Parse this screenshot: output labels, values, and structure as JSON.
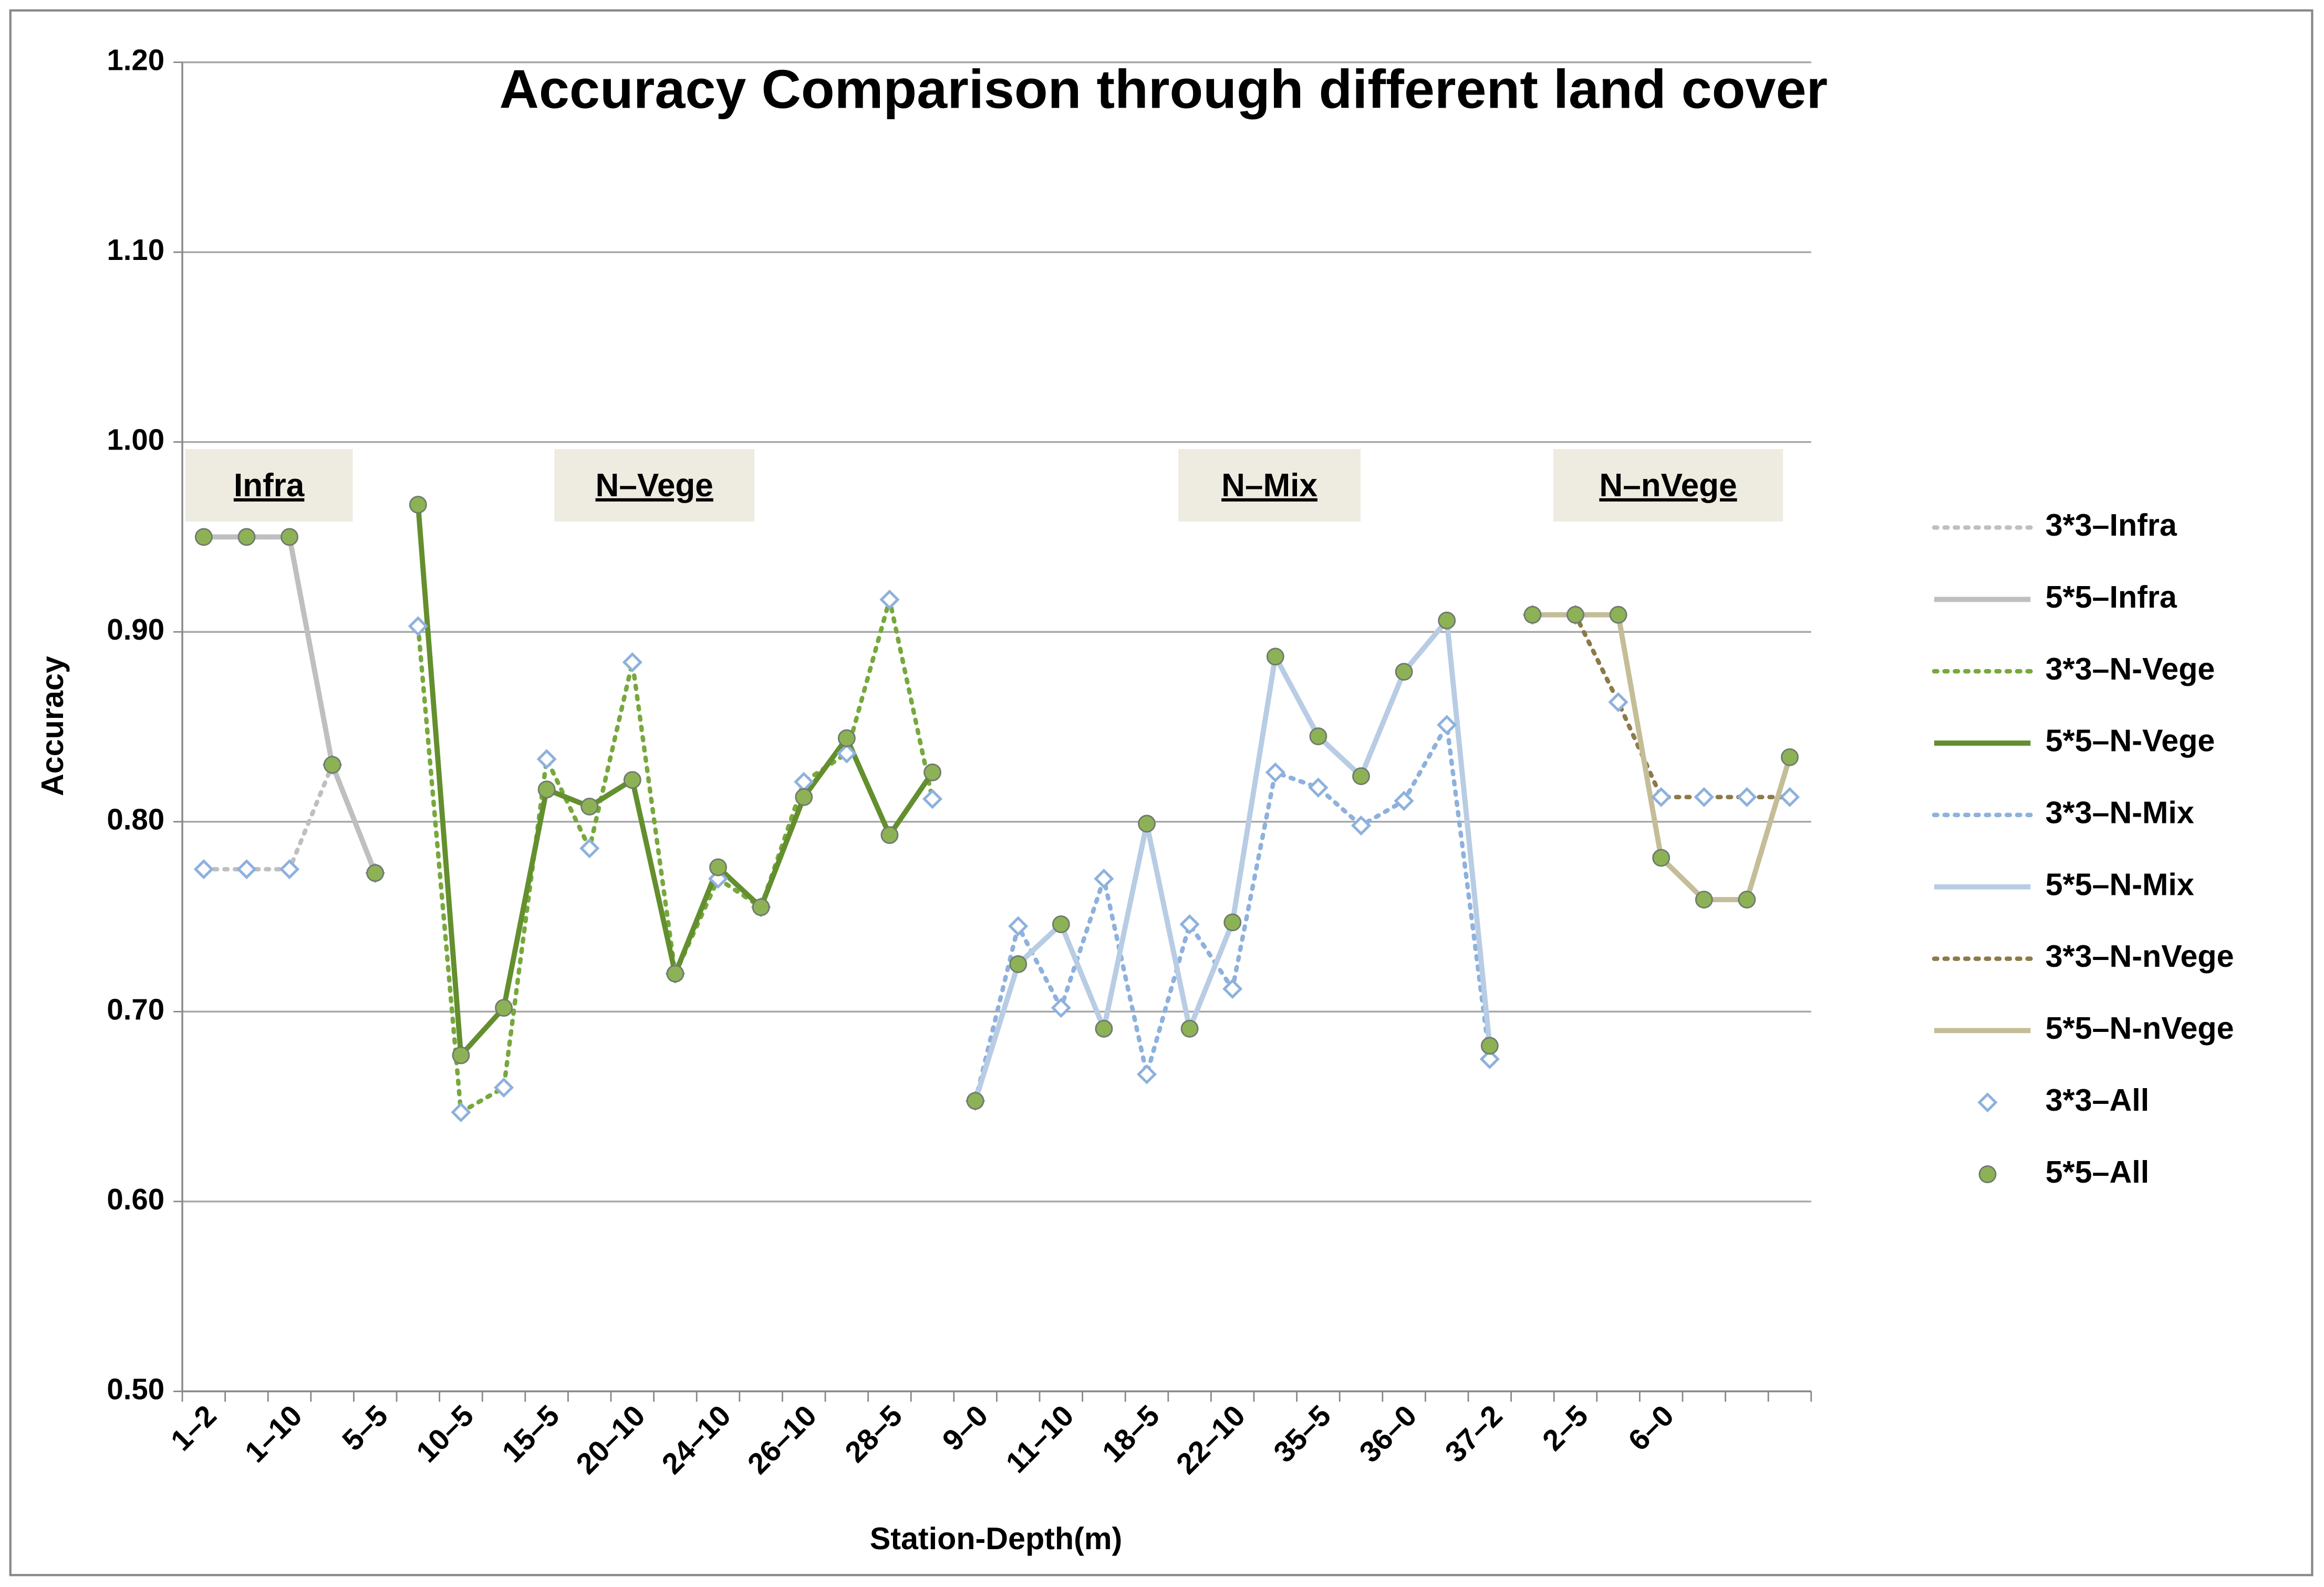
{
  "chart_data": {
    "type": "line",
    "title": "Accuracy Comparison through different land cover",
    "x_label": "Station-Depth(m)",
    "y_label": "Accuracy",
    "categories": [
      "1–2",
      null,
      "1–10",
      null,
      "5–5",
      null,
      "10–5",
      null,
      "15–5",
      null,
      "20–10",
      null,
      "24–10",
      null,
      "26–10",
      null,
      "28–5",
      null,
      "9–0",
      null,
      "11–10",
      null,
      "18–5",
      null,
      "22–10",
      null,
      "35–5",
      null,
      "36–0",
      null,
      "37–2",
      null,
      "2–5",
      null,
      "6–0",
      null,
      null,
      null
    ],
    "ylim": [
      0.5,
      1.2
    ],
    "yticks": [
      {
        "value": 0.5,
        "label": "0.50"
      },
      {
        "value": 0.6,
        "label": "0.60"
      },
      {
        "value": 0.7,
        "label": "0.70"
      },
      {
        "value": 0.8,
        "label": "0.80"
      },
      {
        "value": 0.9,
        "label": "0.90"
      },
      {
        "value": 1.0,
        "label": "1.00"
      },
      {
        "value": 1.1,
        "label": "1.10"
      },
      {
        "value": 1.2,
        "label": "1.20"
      }
    ],
    "grid": true,
    "legend": "right",
    "annotations": [
      "Infra",
      "N–Vege",
      "N–Mix",
      "N–nVege"
    ],
    "series": [
      {
        "name": "3*3–Infra",
        "color": "#bfbfbf",
        "style": "dotted",
        "marker": "diamond",
        "values": [
          0.775,
          0.775,
          0.775,
          0.83,
          0.773,
          null,
          null,
          null,
          null,
          null,
          null,
          null,
          null,
          null,
          null,
          null,
          null,
          null,
          null,
          null,
          null,
          null,
          null,
          null,
          null,
          null,
          null,
          null,
          null,
          null,
          null,
          null,
          null,
          null,
          null,
          null,
          null,
          null
        ]
      },
      {
        "name": "5*5–Infra",
        "color": "#bfbfbf",
        "style": "solid",
        "marker": "circle",
        "values": [
          0.95,
          0.95,
          0.95,
          0.83,
          0.773,
          null,
          null,
          null,
          null,
          null,
          null,
          null,
          null,
          null,
          null,
          null,
          null,
          null,
          null,
          null,
          null,
          null,
          null,
          null,
          null,
          null,
          null,
          null,
          null,
          null,
          null,
          null,
          null,
          null,
          null,
          null,
          null,
          null
        ]
      },
      {
        "name": "3*3–N-Vege",
        "color": "#77a83c",
        "style": "dotted",
        "marker": "diamond",
        "values": [
          null,
          null,
          null,
          null,
          null,
          0.903,
          0.647,
          0.66,
          0.833,
          0.786,
          0.884,
          0.72,
          0.77,
          0.755,
          0.821,
          0.836,
          0.917,
          0.812,
          null,
          null,
          null,
          null,
          null,
          null,
          null,
          null,
          null,
          null,
          null,
          null,
          null,
          null,
          null,
          null,
          null,
          null,
          null,
          null
        ]
      },
      {
        "name": "5*5–N-Vege",
        "color": "#638f2e",
        "style": "solid",
        "marker": "circle",
        "values": [
          null,
          null,
          null,
          null,
          null,
          0.967,
          0.677,
          0.702,
          0.817,
          0.808,
          0.822,
          0.72,
          0.776,
          0.755,
          0.813,
          0.844,
          0.793,
          0.826,
          null,
          null,
          null,
          null,
          null,
          null,
          null,
          null,
          null,
          null,
          null,
          null,
          null,
          null,
          null,
          null,
          null,
          null,
          null,
          null
        ]
      },
      {
        "name": "3*3–N-Mix",
        "color": "#8eb1dd",
        "style": "dotted",
        "marker": "diamond",
        "values": [
          null,
          null,
          null,
          null,
          null,
          null,
          null,
          null,
          null,
          null,
          null,
          null,
          null,
          null,
          null,
          null,
          null,
          null,
          0.653,
          0.745,
          0.702,
          0.77,
          0.667,
          0.746,
          0.712,
          0.826,
          0.818,
          0.798,
          0.811,
          0.851,
          0.675,
          null,
          null,
          null,
          null,
          null,
          null,
          null
        ]
      },
      {
        "name": "5*5–N-Mix",
        "color": "#b8cce4",
        "style": "solid",
        "marker": "circle",
        "values": [
          null,
          null,
          null,
          null,
          null,
          null,
          null,
          null,
          null,
          null,
          null,
          null,
          null,
          null,
          null,
          null,
          null,
          null,
          0.653,
          0.725,
          0.746,
          0.691,
          0.799,
          0.691,
          0.747,
          0.887,
          0.845,
          0.824,
          0.879,
          0.906,
          0.682,
          null,
          null,
          null,
          null,
          null,
          null,
          null
        ]
      },
      {
        "name": "3*3–N-nVege",
        "color": "#8c7a4a",
        "style": "dotted",
        "marker": "diamond",
        "values": [
          null,
          null,
          null,
          null,
          null,
          null,
          null,
          null,
          null,
          null,
          null,
          null,
          null,
          null,
          null,
          null,
          null,
          null,
          null,
          null,
          null,
          null,
          null,
          null,
          null,
          null,
          null,
          null,
          null,
          null,
          null,
          0.909,
          0.909,
          0.863,
          0.813,
          0.813,
          0.813,
          0.813
        ]
      },
      {
        "name": "5*5–N-nVege",
        "color": "#c4bd97",
        "style": "solid",
        "marker": "circle",
        "values": [
          null,
          null,
          null,
          null,
          null,
          null,
          null,
          null,
          null,
          null,
          null,
          null,
          null,
          null,
          null,
          null,
          null,
          null,
          null,
          null,
          null,
          null,
          null,
          null,
          null,
          null,
          null,
          null,
          null,
          null,
          null,
          0.909,
          0.909,
          0.909,
          0.781,
          0.759,
          0.759,
          0.834
        ]
      }
    ],
    "marker_legend": [
      {
        "name": "3*3–All",
        "marker": "diamond"
      },
      {
        "name": "5*5–All",
        "marker": "circle"
      }
    ]
  }
}
